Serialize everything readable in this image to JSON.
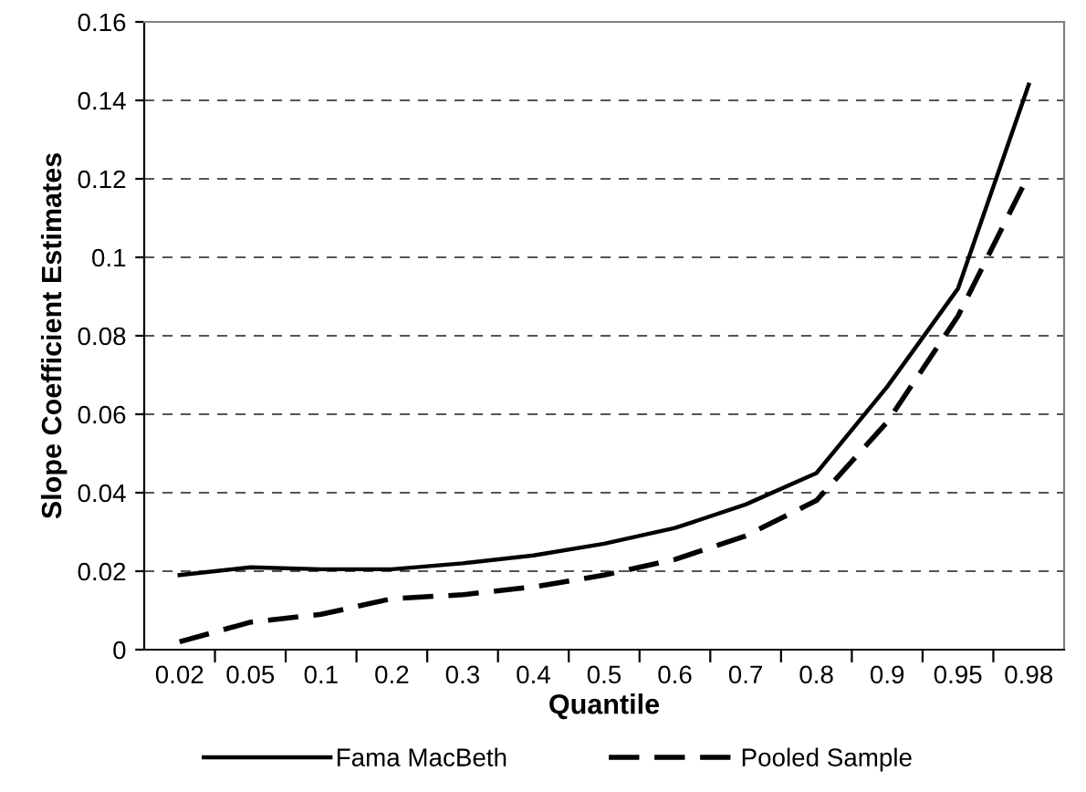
{
  "chart_data": {
    "type": "line",
    "xlabel": "Quantile",
    "ylabel": "Slope Coefficient Estimates",
    "categories": [
      "0.02",
      "0.05",
      "0.1",
      "0.2",
      "0.3",
      "0.4",
      "0.5",
      "0.6",
      "0.7",
      "0.8",
      "0.9",
      "0.95",
      "0.98"
    ],
    "series": [
      {
        "name": "Fama MacBeth",
        "color": "#000000",
        "line_style": "solid",
        "values": [
          0.019,
          0.021,
          0.0205,
          0.0205,
          0.022,
          0.024,
          0.027,
          0.031,
          0.037,
          0.045,
          0.067,
          0.092,
          0.144
        ]
      },
      {
        "name": "Pooled Sample",
        "color": "#000000",
        "line_style": "dashed",
        "values": [
          0.002,
          0.007,
          0.009,
          0.013,
          0.014,
          0.016,
          0.019,
          0.023,
          0.029,
          0.038,
          0.058,
          0.085,
          0.121
        ]
      }
    ],
    "ylim": [
      0,
      0.16
    ],
    "yticks": [
      0,
      0.02,
      0.04,
      0.06,
      0.08,
      0.1,
      0.12,
      0.14,
      0.16
    ],
    "grid": "y",
    "legend": "bottom",
    "marker": "none"
  }
}
